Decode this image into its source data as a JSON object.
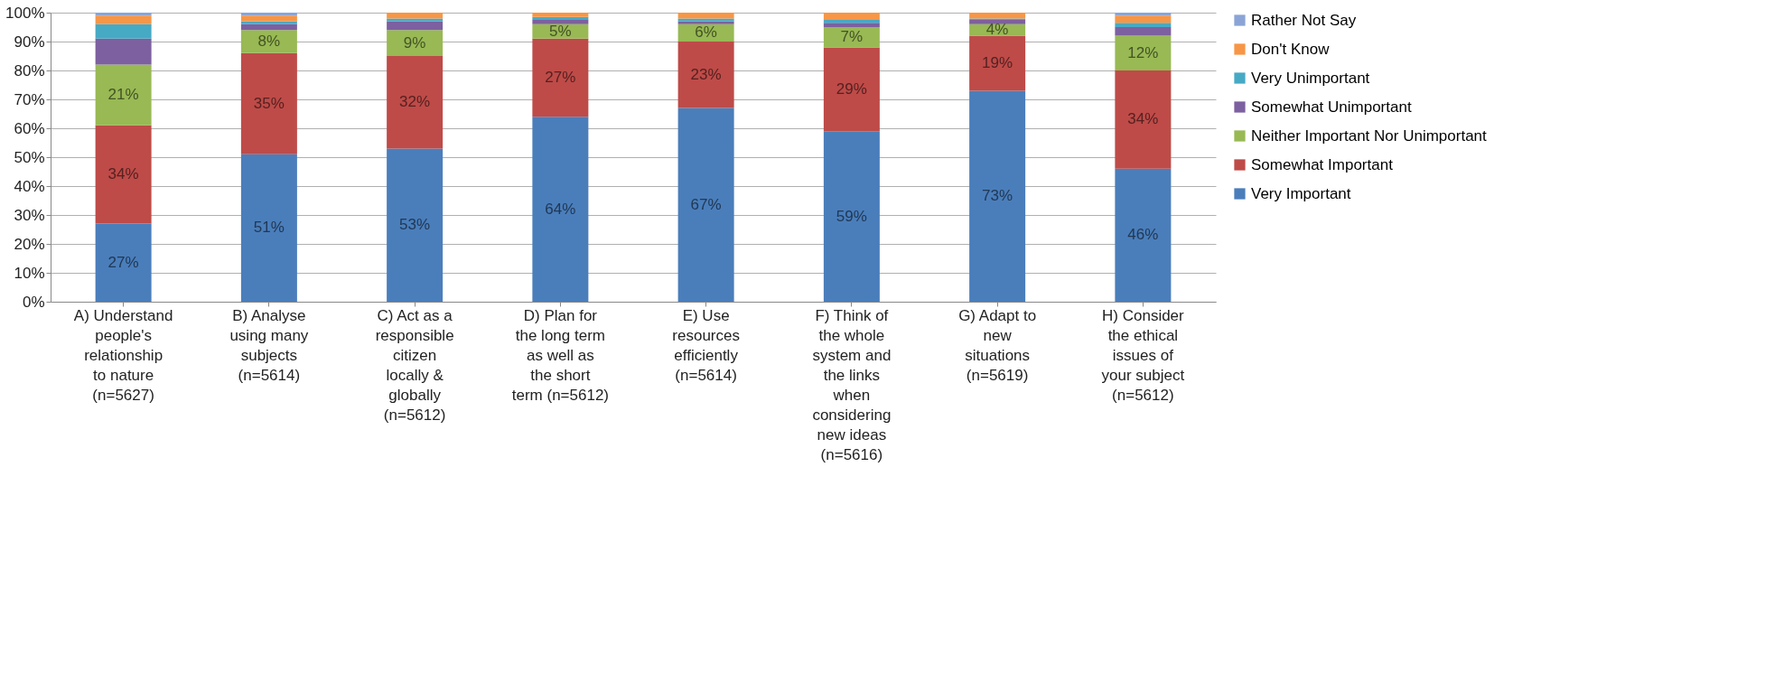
{
  "chart_data": {
    "type": "bar",
    "stacked": true,
    "legend": "right",
    "grid": "y",
    "categories": [
      "A) Understand people's relationship to nature (n=5627)",
      "B) Analyse using many subjects (n=5614)",
      "C) Act as a responsible citizen locally & globally (n=5612)",
      "D) Plan for the long term as well as the short term (n=5612)",
      "E) Use resources efficiently (n=5614)",
      "F) Think of the whole system and the links when considering new ideas (n=5616)",
      "G) Adapt to new situations (n=5619)",
      "H) Consider the ethical issues of your subject (n=5612)"
    ],
    "ylim": [
      0,
      100
    ],
    "yticks": [
      {
        "value": 0,
        "label": "0%"
      },
      {
        "value": 10,
        "label": "10%"
      },
      {
        "value": 20,
        "label": "20%"
      },
      {
        "value": 30,
        "label": "30%"
      },
      {
        "value": 40,
        "label": "40%"
      },
      {
        "value": 50,
        "label": "50%"
      },
      {
        "value": 60,
        "label": "60%"
      },
      {
        "value": 70,
        "label": "70%"
      },
      {
        "value": 80,
        "label": "80%"
      },
      {
        "value": 90,
        "label": "90%"
      },
      {
        "value": 100,
        "label": "100%"
      }
    ],
    "series": [
      {
        "name": "Very Important",
        "color": "#4a7ebb",
        "values": [
          27,
          51,
          53,
          64,
          67,
          59,
          73,
          46
        ],
        "value_labels": [
          "27%",
          "51%",
          "53%",
          "64%",
          "67%",
          "59%",
          "73%",
          "46%"
        ]
      },
      {
        "name": "Somewhat Important",
        "color": "#be4b48",
        "values": [
          34,
          35,
          32,
          27,
          23,
          29,
          19,
          34
        ],
        "value_labels": [
          "34%",
          "35%",
          "32%",
          "27%",
          "23%",
          "29%",
          "19%",
          "34%"
        ]
      },
      {
        "name": "Neither Important Nor Unimportant",
        "color": "#98b954",
        "values": [
          21,
          8,
          9,
          5,
          6,
          7,
          4,
          12
        ],
        "value_labels": [
          "21%",
          "8%",
          "9%",
          "5%",
          "6%",
          "7%",
          "4%",
          "12%"
        ]
      },
      {
        "name": "Somewhat Unimportant",
        "color": "#7d60a0",
        "values": [
          9,
          2,
          3,
          1.5,
          1,
          1.5,
          1.5,
          3
        ]
      },
      {
        "name": "Very Unimportant",
        "color": "#46aac5",
        "values": [
          5,
          1,
          1,
          1,
          1,
          1,
          0.5,
          1.5
        ]
      },
      {
        "name": "Don't Know",
        "color": "#f79646",
        "values": [
          3,
          2,
          2,
          1.5,
          2,
          2.5,
          2,
          2.5
        ]
      },
      {
        "name": "Rather Not Say",
        "color": "#8aa4d6",
        "values": [
          1,
          1,
          0,
          null,
          null,
          0,
          null,
          1
        ]
      }
    ]
  }
}
